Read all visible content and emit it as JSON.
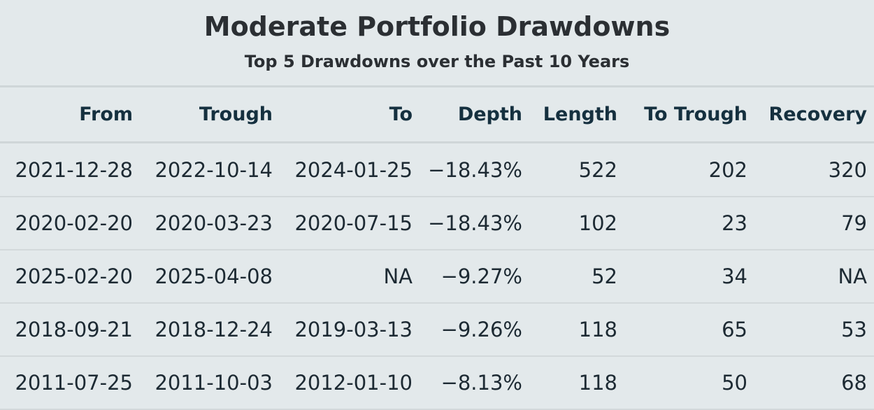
{
  "chart_data": {
    "type": "table",
    "title": "Moderate Portfolio Drawdowns",
    "subtitle": "Top 5 Drawdowns over the Past 10 Years",
    "columns": [
      "From",
      "Trough",
      "To",
      "Depth",
      "Length",
      "To Trough",
      "Recovery"
    ],
    "rows": [
      [
        "2021-12-28",
        "2022-10-14",
        "2024-01-25",
        "−18.43%",
        "522",
        "202",
        "320"
      ],
      [
        "2020-02-20",
        "2020-03-23",
        "2020-07-15",
        "−18.43%",
        "102",
        "23",
        "79"
      ],
      [
        "2025-02-20",
        "2025-04-08",
        "NA",
        "−9.27%",
        "52",
        "34",
        "NA"
      ],
      [
        "2018-09-21",
        "2018-12-24",
        "2019-03-13",
        "−9.26%",
        "118",
        "65",
        "53"
      ],
      [
        "2011-07-25",
        "2011-10-03",
        "2012-01-10",
        "−8.13%",
        "118",
        "50",
        "68"
      ]
    ]
  }
}
